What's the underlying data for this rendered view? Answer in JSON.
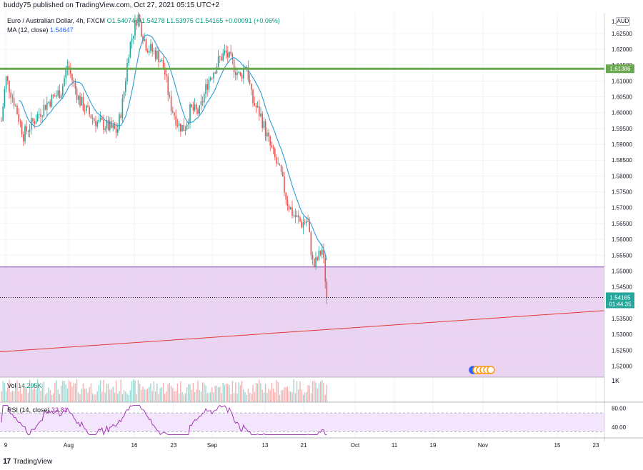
{
  "header": {
    "published_by": "buddy75 published on TradingView.com, Oct 27, 2021 05:15 UTC+2",
    "symbol": "Euro / Australian Dollar, 4h, FXCM",
    "open": "O1.54074",
    "high": "H1.54278",
    "low": "L1.53975",
    "close": "C1.54165",
    "change": "+0.00091 (+0.06%)",
    "ma_label": "MA (12, close)",
    "ma_value": "1.54647",
    "currency": "AUD"
  },
  "volume": {
    "label": "Vol",
    "value": "14.295K",
    "scale_label": "1K"
  },
  "rsi": {
    "label": "RSI (14, close)",
    "value": "32.81",
    "upper_level": 70,
    "lower_level": 30,
    "y_ticks": [
      "80.00",
      "40.00"
    ]
  },
  "footer": {
    "brand": "TradingView",
    "logo_icon": "tv-logo-icon"
  },
  "colors": {
    "up": "#26a69a",
    "down": "#ef5350",
    "ma": "#2e9bd6",
    "resistance": "#6aa84f",
    "trendline": "#e53935",
    "zone_fill": "#e6cdee",
    "zone_border": "#a678c7",
    "rsi_line": "#9c27b0"
  },
  "chart_data": {
    "type": "candlestick",
    "y_ticks": [
      "1.62500",
      "1.62000",
      "1.61500",
      "1.61000",
      "1.60500",
      "1.60000",
      "1.59500",
      "1.59000",
      "1.58500",
      "1.58000",
      "1.57500",
      "1.57000",
      "1.56500",
      "1.56000",
      "1.55500",
      "1.55000",
      "1.54500",
      "1.54000",
      "1.53500",
      "1.53000",
      "1.52500",
      "1.52000"
    ],
    "y_top_partial": "1.6",
    "ylim": [
      1.5165,
      1.6315
    ],
    "x_ticks": [
      "9",
      "Aug",
      "16",
      "23",
      "Sep",
      "13",
      "21",
      "Oct",
      "11",
      "19",
      "Nov",
      "15",
      "23"
    ],
    "resistance": {
      "value": 1.61386,
      "label": "1.61386"
    },
    "last_price": {
      "value": 1.54165,
      "label": "1.54165",
      "countdown": "01:44:35"
    },
    "zone": {
      "top": 1.5513,
      "bottom": 1.5165
    },
    "trendline": {
      "start": {
        "date": "2021-07-07",
        "price": 1.5245
      },
      "end": {
        "date": "2021-11-26",
        "price": 1.5375
      }
    },
    "price_path": [
      [
        "2021-07-07",
        1.593
      ],
      [
        "2021-07-09",
        1.611
      ],
      [
        "2021-07-12",
        1.603
      ],
      [
        "2021-07-15",
        1.593
      ],
      [
        "2021-07-19",
        1.598
      ],
      [
        "2021-07-23",
        1.603
      ],
      [
        "2021-07-28",
        1.607
      ],
      [
        "2021-07-30",
        1.615
      ],
      [
        "2021-08-03",
        1.604
      ],
      [
        "2021-08-06",
        1.6
      ],
      [
        "2021-08-09",
        1.597
      ],
      [
        "2021-08-12",
        1.596
      ],
      [
        "2021-08-16",
        1.594
      ],
      [
        "2021-08-18",
        1.604
      ],
      [
        "2021-08-20",
        1.62
      ],
      [
        "2021-08-23",
        1.631
      ],
      [
        "2021-08-24",
        1.627
      ],
      [
        "2021-08-26",
        1.621
      ],
      [
        "2021-08-30",
        1.618
      ],
      [
        "2021-09-01",
        1.614
      ],
      [
        "2021-09-03",
        1.603
      ],
      [
        "2021-09-06",
        1.596
      ],
      [
        "2021-09-08",
        1.595
      ],
      [
        "2021-09-10",
        1.601
      ],
      [
        "2021-09-13",
        1.6
      ],
      [
        "2021-09-16",
        1.61
      ],
      [
        "2021-09-20",
        1.617
      ],
      [
        "2021-09-22",
        1.619
      ],
      [
        "2021-09-24",
        1.616
      ],
      [
        "2021-09-27",
        1.611
      ],
      [
        "2021-09-29",
        1.616
      ],
      [
        "2021-10-01",
        1.604
      ],
      [
        "2021-10-04",
        1.599
      ],
      [
        "2021-10-07",
        1.59
      ],
      [
        "2021-10-11",
        1.58
      ],
      [
        "2021-10-13",
        1.572
      ],
      [
        "2021-10-15",
        1.568
      ],
      [
        "2021-10-18",
        1.565
      ],
      [
        "2021-10-20",
        1.566
      ],
      [
        "2021-10-21",
        1.558
      ],
      [
        "2021-10-22",
        1.551
      ],
      [
        "2021-10-25",
        1.557
      ],
      [
        "2021-10-26",
        1.548
      ],
      [
        "2021-10-27",
        1.5417
      ]
    ]
  }
}
